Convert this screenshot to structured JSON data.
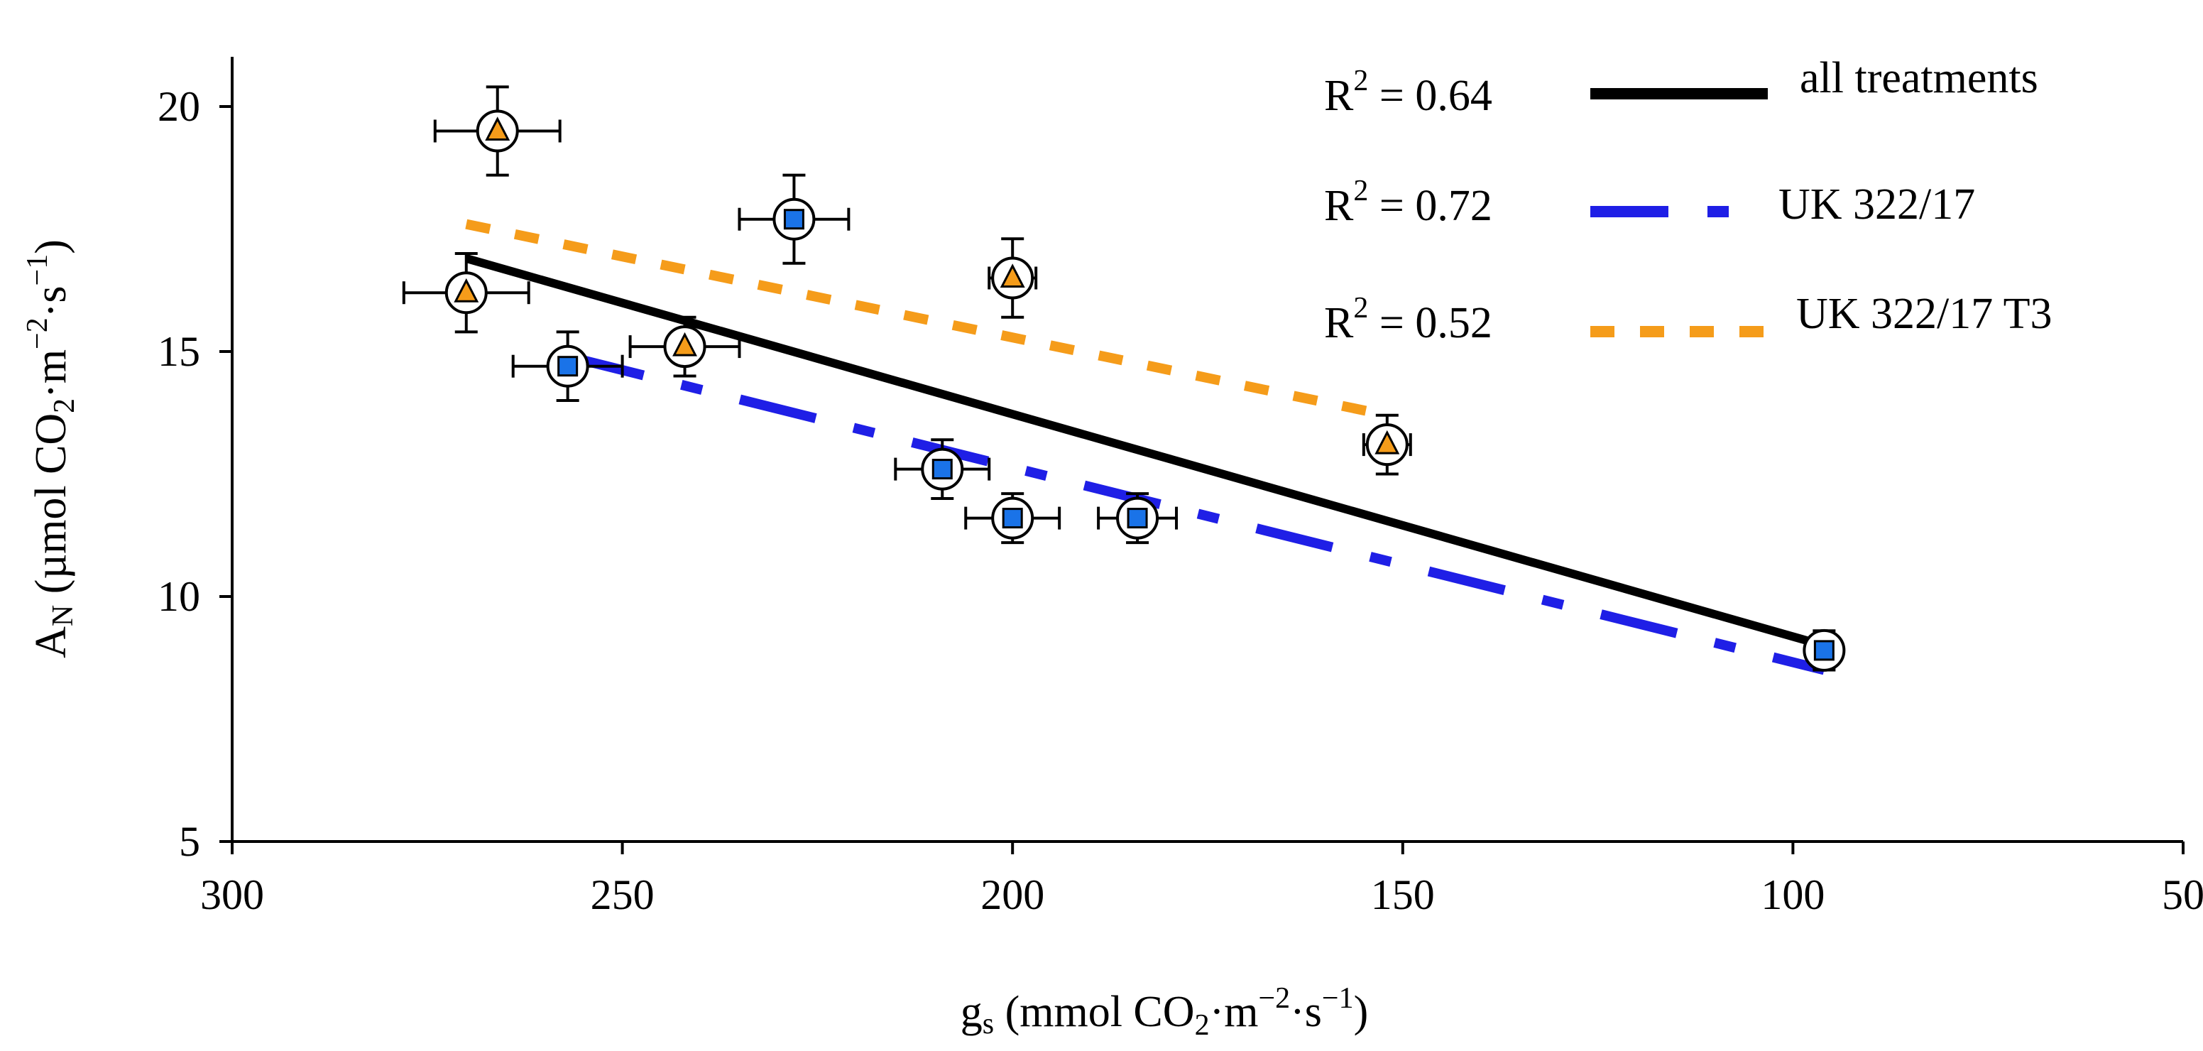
{
  "chart_data": {
    "type": "scatter",
    "title": "",
    "xlabel": {
      "base": "g",
      "sub": "s",
      "text": " (mmol CO",
      "sub2": "2",
      "unit1": "·m",
      "exp1": "−2",
      "unit2": "·s",
      "exp2": "−1",
      "close": ")"
    },
    "ylabel": {
      "base": "A",
      "sub": "N",
      "text": " (µmol CO",
      "sub2": "2",
      "unit1": "·m",
      "exp1": "−2",
      "unit2": "·s",
      "exp2": "−1",
      "close": ")"
    },
    "xlim": [
      300,
      50
    ],
    "ylim": [
      5,
      21
    ],
    "x_ticks": [
      "300",
      "250",
      "200",
      "150",
      "100",
      "50"
    ],
    "x_tick_values": [
      300,
      250,
      200,
      150,
      100,
      50
    ],
    "y_ticks": [
      "20",
      "15",
      "10",
      "5"
    ],
    "y_tick_values": [
      20,
      15,
      10,
      5
    ],
    "series": [
      {
        "name": "UK 322/17",
        "marker": "square",
        "color": "#1a73e8",
        "points": [
          {
            "x": 257,
            "y": 14.7,
            "xerr": 7,
            "yerr": 0.7
          },
          {
            "x": 228,
            "y": 17.7,
            "xerr": 7,
            "yerr": 0.9
          },
          {
            "x": 209,
            "y": 12.6,
            "xerr": 6,
            "yerr": 0.6
          },
          {
            "x": 200,
            "y": 11.6,
            "xerr": 6,
            "yerr": 0.5
          },
          {
            "x": 184,
            "y": 11.6,
            "xerr": 5,
            "yerr": 0.5
          },
          {
            "x": 96,
            "y": 8.9,
            "xerr": 2,
            "yerr": 0.4
          }
        ]
      },
      {
        "name": "UK 322/17 T3",
        "marker": "triangle",
        "color": "#f59c1a",
        "points": [
          {
            "x": 270,
            "y": 16.2,
            "xerr": 8,
            "yerr": 0.8
          },
          {
            "x": 266,
            "y": 19.5,
            "xerr": 8,
            "yerr": 0.9
          },
          {
            "x": 242,
            "y": 15.1,
            "xerr": 7,
            "yerr": 0.6
          },
          {
            "x": 200,
            "y": 16.5,
            "xerr": 3,
            "yerr": 0.8
          },
          {
            "x": 152,
            "y": 13.1,
            "xerr": 3,
            "yerr": 0.6
          }
        ]
      }
    ],
    "trendlines": [
      {
        "name": "all treatments",
        "r2": "R",
        "r2_exp": "2",
        "r2_value": " = 0.64",
        "color": "#000000",
        "style": "solid",
        "x": [
          270,
          96
        ],
        "y": [
          16.9,
          9.0
        ]
      },
      {
        "name": "UK 322/17",
        "r2": "R",
        "r2_exp": "2",
        "r2_value": " = 0.72",
        "color": "#1f1fe6",
        "style": "dashdot",
        "x": [
          257,
          96
        ],
        "y": [
          14.9,
          8.5
        ]
      },
      {
        "name": "UK 322/17 T3",
        "r2": "R",
        "r2_exp": "2",
        "r2_value": " = 0.52",
        "color": "#f59c1a",
        "style": "dotted",
        "x": [
          270,
          152
        ],
        "y": [
          17.6,
          13.7
        ]
      }
    ],
    "legend_position": "top-right"
  }
}
